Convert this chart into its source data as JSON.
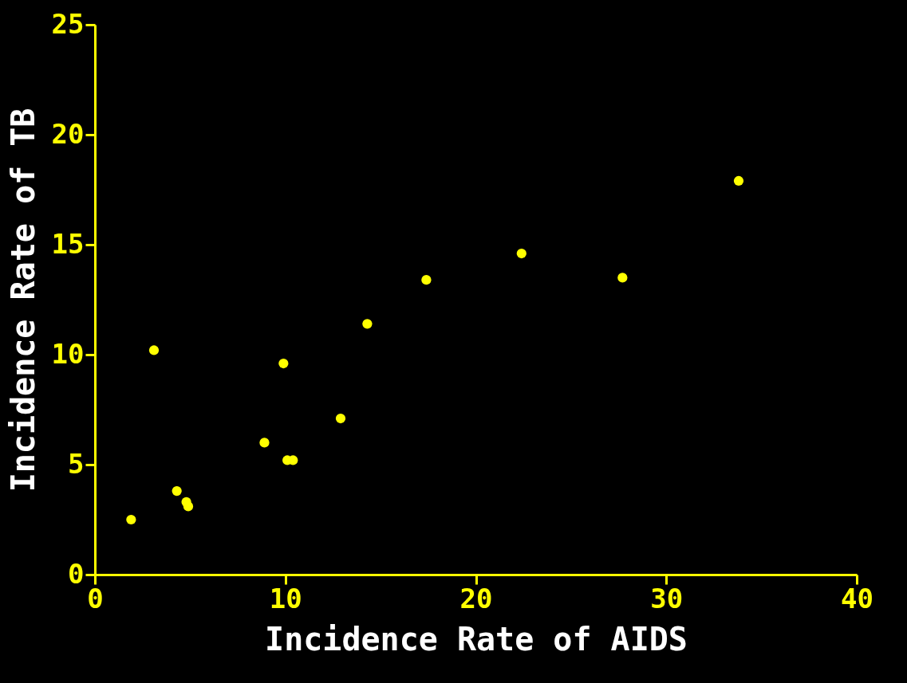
{
  "chart_data": {
    "type": "scatter",
    "xlabel": "Incidence Rate of AIDS",
    "ylabel": "Incidence Rate of TB",
    "x": [
      1.9,
      3.1,
      4.3,
      4.8,
      4.9,
      8.9,
      9.9,
      10.1,
      10.4,
      12.9,
      14.3,
      17.4,
      22.4,
      27.7,
      33.8
    ],
    "series": [
      {
        "color": "#ffff00",
        "values": [
          2.5,
          10.2,
          3.8,
          3.3,
          3.1,
          6.0,
          9.6,
          5.2,
          5.2,
          7.1,
          11.4,
          13.4,
          14.6,
          13.5,
          17.9
        ]
      }
    ],
    "xlim": [
      0,
      40
    ],
    "xticks": [
      0,
      10,
      20,
      30,
      40
    ],
    "ylim": [
      0,
      25
    ],
    "yticks": [
      0,
      5,
      10,
      15,
      20,
      25
    ],
    "grid": false,
    "marker": "circle"
  }
}
